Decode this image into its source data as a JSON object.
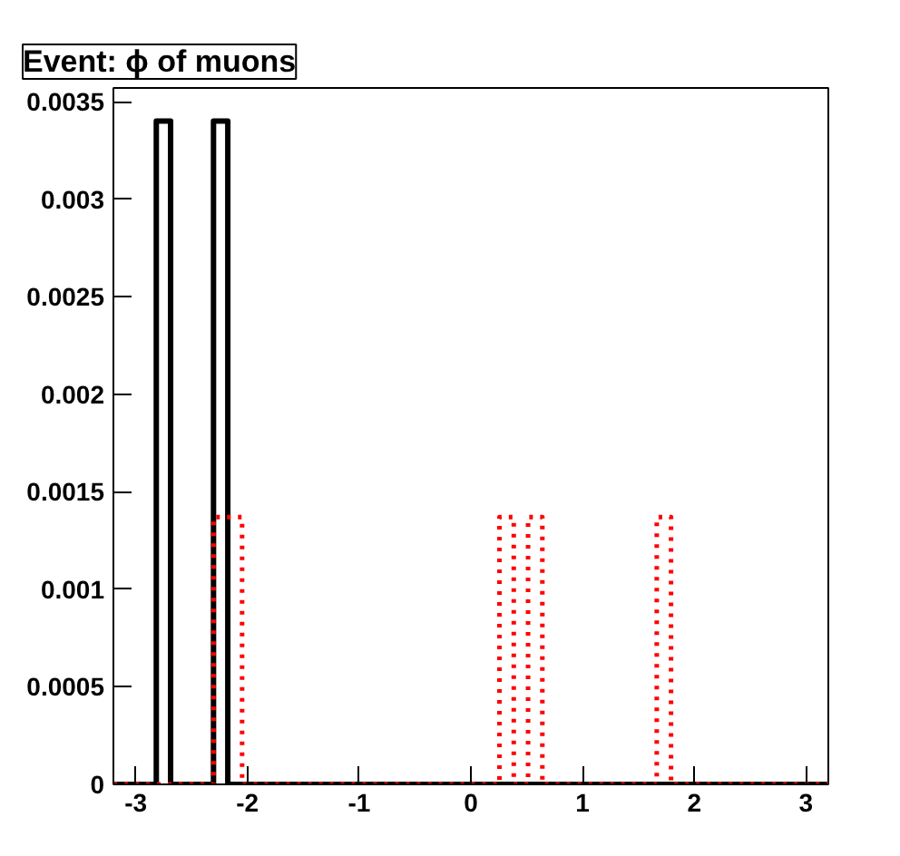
{
  "chart_data": {
    "type": "histogram",
    "title": "Event: ϕ of muons",
    "bins": [
      -3.2,
      -3.072,
      -2.944,
      -2.816,
      -2.688,
      -2.56,
      -2.432,
      -2.304,
      -2.176,
      -2.048,
      -1.92,
      -1.792,
      -1.664,
      -1.536,
      -1.408,
      -1.28,
      -1.152,
      -1.024,
      -0.896,
      -0.768,
      -0.64,
      -0.512,
      -0.384,
      -0.256,
      -0.128,
      0,
      0.128,
      0.256,
      0.384,
      0.512,
      0.64,
      0.768,
      0.896,
      1.024,
      1.152,
      1.28,
      1.408,
      1.536,
      1.664,
      1.792,
      1.92,
      2.048,
      2.176,
      2.304,
      2.432,
      2.56,
      2.688,
      2.816,
      2.944,
      3.072,
      3.2
    ],
    "series": [
      {
        "color": "#000000",
        "line_style": "solid",
        "values": [
          0,
          0,
          0,
          0.0034,
          0,
          0,
          0,
          0.0034,
          0,
          0,
          0,
          0,
          0,
          0,
          0,
          0,
          0,
          0,
          0,
          0,
          0,
          0,
          0,
          0,
          0,
          0,
          0,
          0,
          0,
          0,
          0,
          0,
          0,
          0,
          0,
          0,
          0,
          0,
          0,
          0,
          0,
          0,
          0,
          0,
          0,
          0,
          0,
          0,
          0,
          0
        ]
      },
      {
        "color": "#ff0000",
        "line_style": "dotted",
        "values": [
          0,
          0,
          0,
          0,
          0,
          0,
          0,
          0.00137,
          0.00137,
          0,
          0,
          0,
          0,
          0,
          0,
          0,
          0,
          0,
          0,
          0,
          0,
          0,
          0,
          0,
          0,
          0,
          0,
          0.00137,
          0,
          0.00137,
          0,
          0,
          0,
          0,
          0,
          0,
          0,
          0,
          0.00137,
          0,
          0,
          0,
          0,
          0,
          0,
          0,
          0,
          0,
          0,
          0
        ]
      }
    ],
    "xlim": [
      -3.2,
      3.2
    ],
    "ylim": [
      0,
      0.00357
    ],
    "xticks": [
      -3,
      -2,
      -1,
      0,
      1,
      2,
      3
    ],
    "yticks": [
      0,
      0.0005,
      0.001,
      0.0015,
      0.002,
      0.0025,
      0.003,
      0.0035
    ]
  }
}
